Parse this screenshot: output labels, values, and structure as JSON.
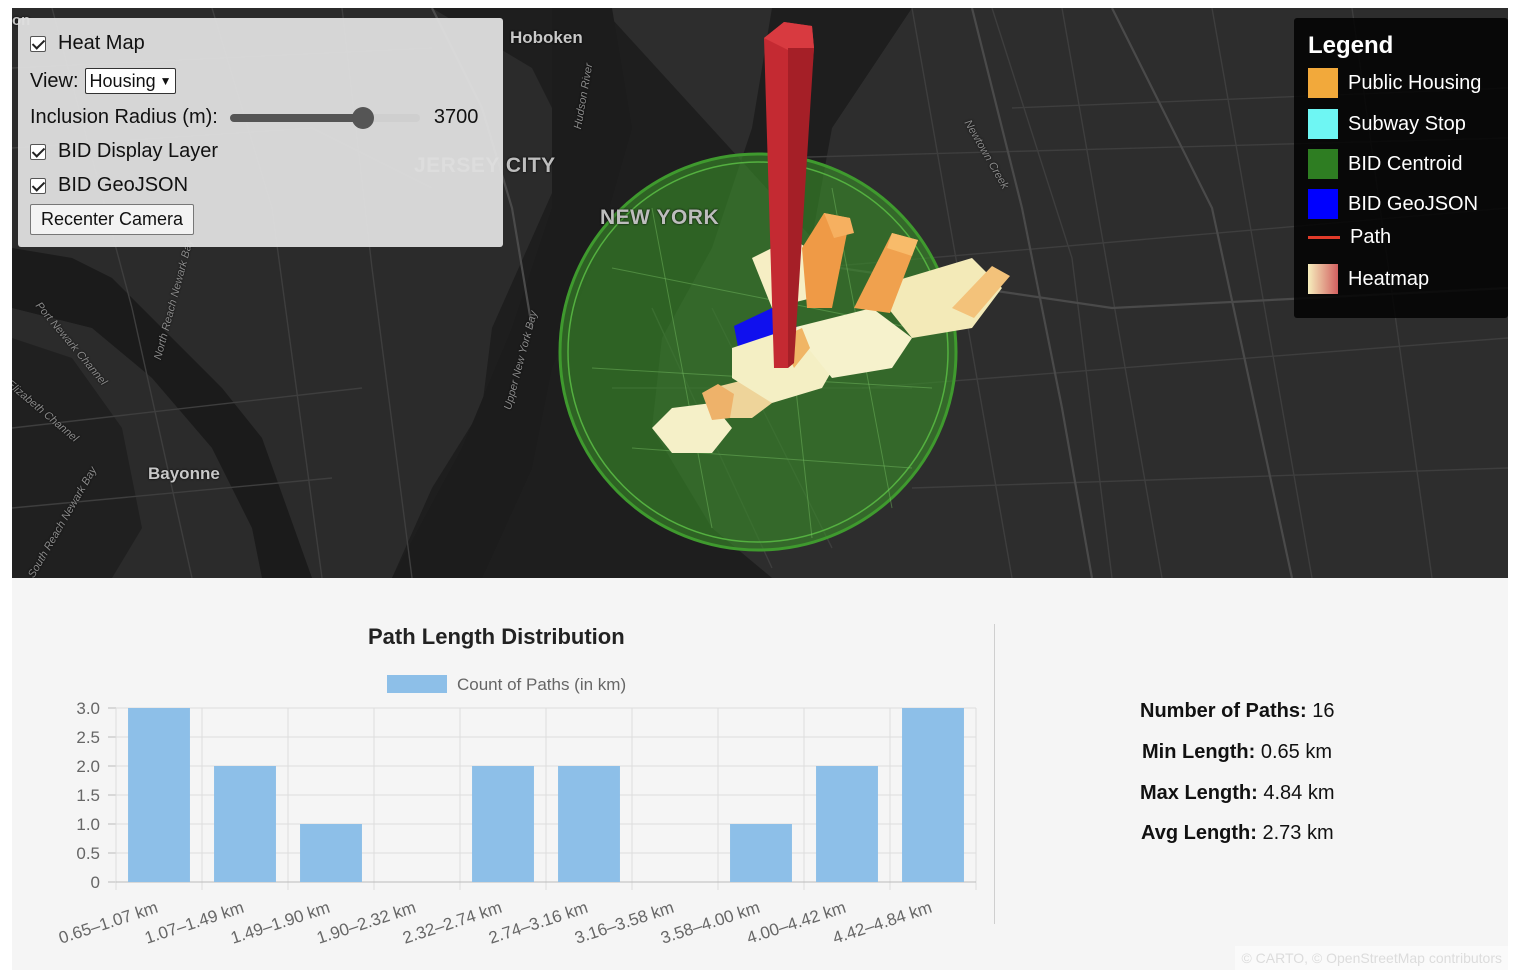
{
  "map": {
    "labels": {
      "hoboken": "Hoboken",
      "jersey_city": "JERSEY CITY",
      "new_york": "NEW YORK",
      "bayonne": "Bayonne",
      "hudson_river": "Hudson River",
      "newtown_creek": "Newtown Creek",
      "upper_new_york_bay": "Upper New York Bay",
      "port_newark_channel": "Port Newark Channel",
      "north_reach_newark_bay": "North Reach Newark Bay",
      "elizabeth_channel": "Elizabeth Channel",
      "south_reach_newark_bay": "South Reach Newark Bay",
      "edge_fragment": "on"
    }
  },
  "controls": {
    "heat_map_label": "Heat Map",
    "heat_map_checked": true,
    "view_label": "View:",
    "view_selected": "Housing",
    "radius_label": "Inclusion Radius (m):",
    "radius_value": "3700",
    "radius_fraction": 0.7,
    "bid_display_label": "BID Display Layer",
    "bid_display_checked": true,
    "bid_geojson_label": "BID GeoJSON",
    "bid_geojson_checked": true,
    "recenter_label": "Recenter Camera"
  },
  "legend": {
    "title": "Legend",
    "items": [
      {
        "label": "Public Housing",
        "color": "#f2a93b"
      },
      {
        "label": "Subway Stop",
        "color": "#6ef6f3"
      },
      {
        "label": "BID Centroid",
        "color": "#2e7d22"
      },
      {
        "label": "BID GeoJSON",
        "color": "#0000ff"
      },
      {
        "label": "Path",
        "color": "#e23b2a"
      },
      {
        "label": "Heatmap",
        "color": "#f6e8b6"
      }
    ]
  },
  "chart_data": {
    "type": "bar",
    "title": "Path Length Distribution",
    "legend": "Count of Paths (in km)",
    "categories": [
      "0.65–1.07 km",
      "1.07–1.49 km",
      "1.49–1.90 km",
      "1.90–2.32 km",
      "2.32–2.74 km",
      "2.74–3.16 km",
      "3.16–3.58 km",
      "3.58–4.00 km",
      "4.00–4.42 km",
      "4.42–4.84 km"
    ],
    "values": [
      3,
      2,
      1,
      0,
      2,
      2,
      0,
      1,
      2,
      3
    ],
    "ylim": [
      0,
      3
    ],
    "yticks": [
      "0",
      "0.5",
      "1.0",
      "1.5",
      "2.0",
      "2.5",
      "3.0"
    ],
    "bar_color": "#8dbfe8",
    "grid": true
  },
  "stats": {
    "num_paths_label": "Number of Paths:",
    "num_paths_value": "16",
    "min_label": "Min Length:",
    "min_value": "0.65 km",
    "max_label": "Max Length:",
    "max_value": "4.84 km",
    "avg_label": "Avg Length:",
    "avg_value": "2.73 km"
  },
  "attribution": "© CARTO, © OpenStreetMap contributors"
}
